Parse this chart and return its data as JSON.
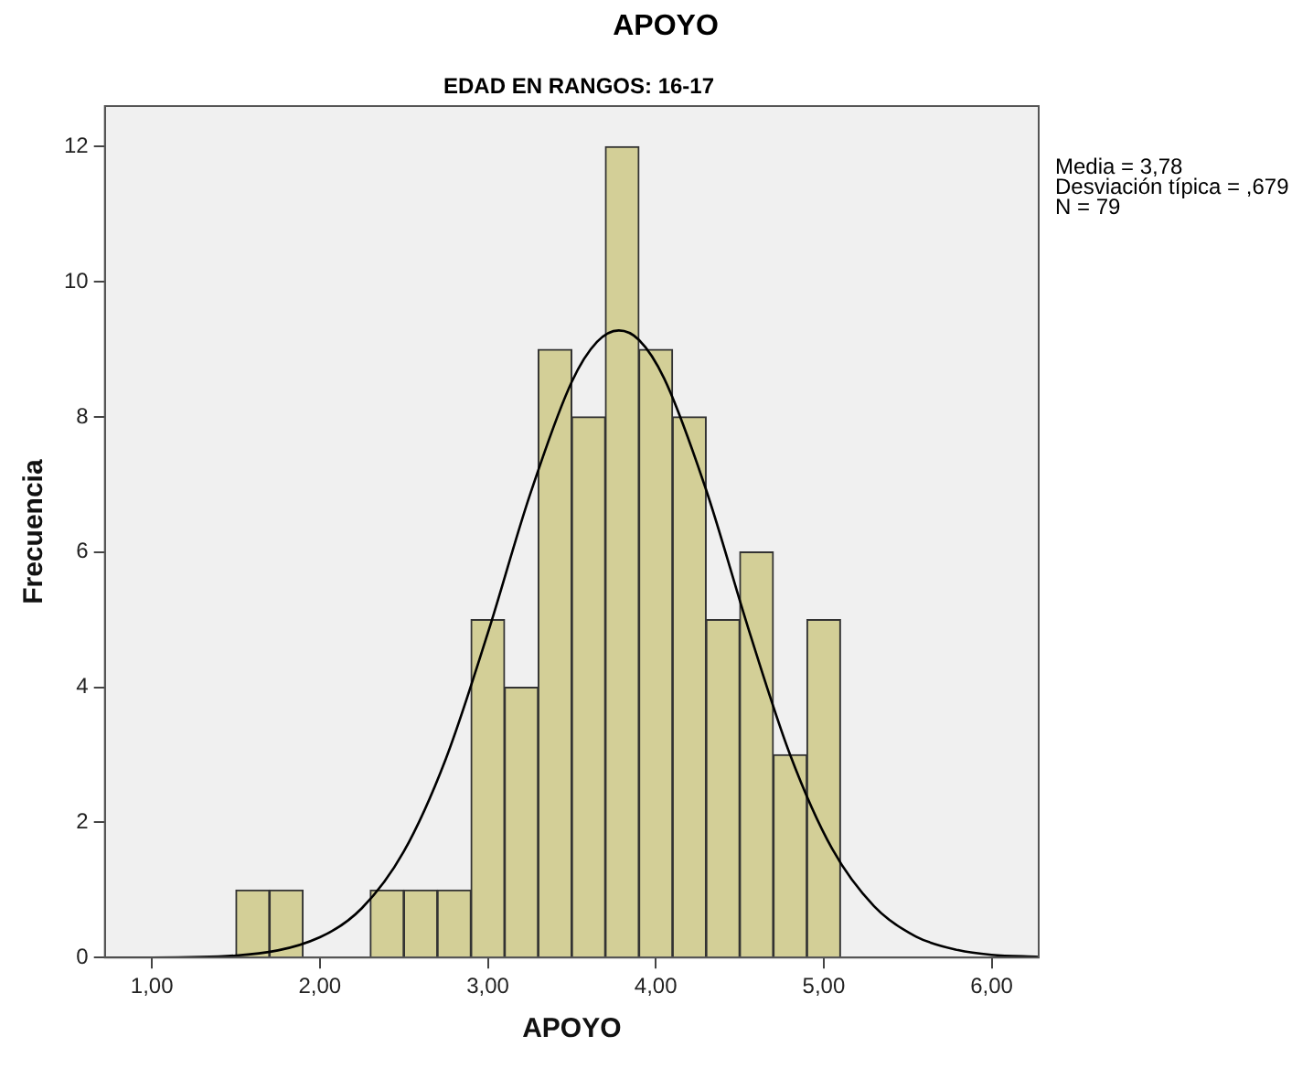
{
  "chart_data": {
    "type": "histogram",
    "title": "APOYO",
    "subtitle": "EDAD EN RANGOS: 16-17",
    "xlabel": "APOYO",
    "ylabel": "Frecuencia",
    "annotations": [
      "Media = 3,78",
      "Desviación típica = ,679",
      "N = 79"
    ],
    "series": [
      {
        "color": "#d3cf97",
        "bins": [
          1.5,
          1.7,
          1.9,
          2.1,
          2.3,
          2.5,
          2.7,
          2.9,
          3.1,
          3.3,
          3.5,
          3.7,
          3.9,
          4.1,
          4.3,
          4.5,
          4.7,
          4.9,
          5.1
        ],
        "values": [
          1,
          1,
          0,
          0,
          1,
          1,
          1,
          5,
          4,
          9,
          8,
          12,
          9,
          8,
          5,
          6,
          3,
          5
        ]
      },
      {
        "type": "line",
        "color": "#000000",
        "x": [
          0.72,
          1.0,
          1.5,
          2.0,
          2.25,
          2.5,
          2.75,
          3.0,
          3.25,
          3.5,
          3.65,
          3.78,
          3.9,
          4.05,
          4.3,
          4.55,
          4.8,
          5.05,
          5.3,
          5.55,
          5.8,
          6.0,
          6.28
        ],
        "values": [
          0.0,
          0.0,
          0.03,
          0.3,
          0.73,
          1.57,
          2.94,
          4.8,
          6.84,
          8.52,
          9.11,
          9.28,
          9.14,
          8.57,
          6.92,
          4.88,
          3.0,
          1.61,
          0.76,
          0.31,
          0.11,
          0.04,
          0.01
        ]
      }
    ],
    "xlim": [
      0.72,
      6.28
    ],
    "xticks": [
      {
        "value": 1,
        "label": "1,00"
      },
      {
        "value": 2,
        "label": "2,00"
      },
      {
        "value": 3,
        "label": "3,00"
      },
      {
        "value": 4,
        "label": "4,00"
      },
      {
        "value": 5,
        "label": "5,00"
      },
      {
        "value": 6,
        "label": "6,00"
      }
    ],
    "ylim": [
      0,
      12.6
    ],
    "yticks": [
      0,
      2,
      4,
      6,
      8,
      10,
      12
    ],
    "grid": false,
    "legend": false,
    "marker": "none",
    "line_style": "solid"
  }
}
